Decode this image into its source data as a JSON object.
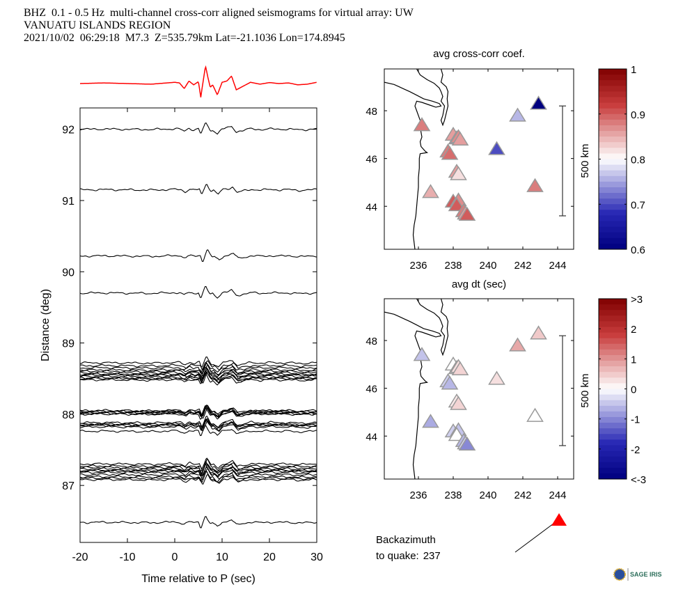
{
  "header": {
    "line1": "BHZ  0.1 - 0.5 Hz  multi-channel cross-corr aligned seismograms for virtual array: UW",
    "line2": "VANUATU ISLANDS REGION",
    "line3": "2021/10/02  06:29:18  M7.3  Z=535.79km Lat=-21.1036 Lon=174.8945"
  },
  "colors": {
    "stack_trace": "#ff0000",
    "trace": "#000000",
    "quake_marker": "#ff0000",
    "colormap_low": "#00007f",
    "colormap_mid": "#ffffff",
    "colormap_high": "#7f0000"
  },
  "chart_data": [
    {
      "type": "line",
      "name": "stacked-beam",
      "title": "",
      "description": "Stacked (beam) seismogram shown in red above the record section",
      "x": [
        -20,
        -15,
        -10,
        -5,
        0,
        1,
        2,
        3,
        4,
        5,
        5.5,
        6,
        6.5,
        7,
        7.5,
        8,
        9,
        10,
        11,
        12,
        13,
        14,
        15,
        16,
        18,
        20,
        22,
        24,
        26,
        28,
        30
      ],
      "y": [
        0,
        0.05,
        0,
        -0.05,
        0.1,
        0.05,
        -0.4,
        0.2,
        -0.1,
        0.15,
        -1.1,
        0.2,
        1.4,
        0.5,
        -0.3,
        -0.1,
        -0.9,
        0.1,
        0.2,
        0.6,
        -0.5,
        -0.3,
        -0.1,
        0.1,
        -0.05,
        0.08,
        0,
        0.05,
        -0.1,
        -0.05,
        0.1
      ]
    },
    {
      "type": "line",
      "name": "record-section",
      "title": "",
      "xlabel": "Time relative to P (sec)",
      "ylabel": "Distance (deg)",
      "xlim": [
        -20,
        30
      ],
      "ylim": [
        86.2,
        92.3
      ],
      "xticks": [
        -20,
        -10,
        0,
        10,
        20,
        30
      ],
      "xtick_labels": [
        "-20",
        "-10",
        "0",
        "10",
        "20",
        "30"
      ],
      "yticks": [
        87,
        88,
        89,
        90,
        91,
        92
      ],
      "ytick_labels": [
        "87",
        "88",
        "89",
        "90",
        "91",
        "92"
      ],
      "trace_offsets_deg": [
        92.0,
        91.15,
        90.22,
        89.7,
        88.72,
        88.68,
        88.65,
        88.62,
        88.6,
        88.58,
        88.56,
        88.55,
        88.53,
        88.51,
        88.5,
        88.48,
        88.05,
        88.04,
        88.03,
        88.02,
        88.01,
        88.0,
        87.88,
        87.86,
        87.85,
        87.84,
        87.82,
        87.76,
        87.3,
        87.27,
        87.25,
        87.23,
        87.21,
        87.2,
        87.18,
        87.15,
        87.12,
        87.1,
        87.08,
        86.48
      ],
      "description": "Cross-correlation aligned vertical-component seismograms plotted at their epicentral distance; main P arrival near 6-7 s"
    },
    {
      "type": "scatter",
      "name": "map-avg-crosscorr",
      "title": "avg cross-corr coef.",
      "xlabel": "avg dt (sec)",
      "ylabel": "",
      "xlim": [
        234.04,
        244.92
      ],
      "ylim": [
        42.2,
        49.75
      ],
      "xticks": [
        236,
        238,
        240,
        242,
        244
      ],
      "xtick_labels": [
        "236",
        "238",
        "240",
        "242",
        "244"
      ],
      "yticks": [
        44,
        46,
        48
      ],
      "ytick_labels": [
        "44",
        "46",
        "48"
      ],
      "scale_bar_label": "500 km",
      "colorbar": {
        "range": [
          0.6,
          1.0
        ],
        "ticks": [
          0.6,
          0.7,
          0.8,
          0.9,
          1.0
        ],
        "tick_labels": [
          "0.6",
          "0.7",
          "0.8",
          "0.9",
          "1"
        ]
      },
      "points": [
        {
          "lon": 236.2,
          "lat": 47.4,
          "value": 0.88
        },
        {
          "lon": 238.0,
          "lat": 47.0,
          "value": 0.86
        },
        {
          "lon": 238.2,
          "lat": 46.85,
          "value": 0.74
        },
        {
          "lon": 238.3,
          "lat": 46.9,
          "value": 0.87
        },
        {
          "lon": 238.4,
          "lat": 46.8,
          "value": 0.86
        },
        {
          "lon": 237.7,
          "lat": 46.3,
          "value": 0.88
        },
        {
          "lon": 237.8,
          "lat": 46.2,
          "value": 0.89
        },
        {
          "lon": 238.2,
          "lat": 45.45,
          "value": 0.86
        },
        {
          "lon": 238.3,
          "lat": 45.35,
          "value": 0.82
        },
        {
          "lon": 236.7,
          "lat": 44.6,
          "value": 0.85
        },
        {
          "lon": 238.0,
          "lat": 44.2,
          "value": 0.9
        },
        {
          "lon": 238.3,
          "lat": 44.25,
          "value": 0.87
        },
        {
          "lon": 238.2,
          "lat": 44.05,
          "value": 0.9
        },
        {
          "lon": 238.6,
          "lat": 43.8,
          "value": 0.88
        },
        {
          "lon": 238.7,
          "lat": 43.7,
          "value": 0.86
        },
        {
          "lon": 238.8,
          "lat": 43.65,
          "value": 0.9
        },
        {
          "lon": 240.5,
          "lat": 46.4,
          "value": 0.7
        },
        {
          "lon": 241.7,
          "lat": 47.8,
          "value": 0.76
        },
        {
          "lon": 242.9,
          "lat": 48.3,
          "value": 0.6
        },
        {
          "lon": 242.7,
          "lat": 44.85,
          "value": 0.88
        }
      ]
    },
    {
      "type": "scatter",
      "name": "map-avg-dt",
      "title": "",
      "xlabel": "",
      "ylabel": "",
      "xlim": [
        234.04,
        244.92
      ],
      "ylim": [
        42.2,
        49.75
      ],
      "xticks": [
        236,
        238,
        240,
        242,
        244
      ],
      "xtick_labels": [
        "236",
        "238",
        "240",
        "242",
        "244"
      ],
      "yticks": [
        44,
        46,
        48
      ],
      "ytick_labels": [
        "44",
        "46",
        "48"
      ],
      "scale_bar_label": "500 km",
      "colorbar": {
        "range": [
          -3,
          3
        ],
        "ticks": [
          -3,
          -2,
          -1,
          0,
          1,
          2,
          3
        ],
        "tick_labels": [
          "<-3",
          "-2",
          "-1",
          "0",
          "1",
          "2",
          ">3"
        ]
      },
      "points": [
        {
          "lon": 236.2,
          "lat": 47.4,
          "value": -0.5
        },
        {
          "lon": 238.0,
          "lat": 47.0,
          "value": 0.0
        },
        {
          "lon": 238.2,
          "lat": 46.85,
          "value": 0.1
        },
        {
          "lon": 238.3,
          "lat": 46.9,
          "value": 0.3
        },
        {
          "lon": 238.4,
          "lat": 46.8,
          "value": 0.4
        },
        {
          "lon": 237.7,
          "lat": 46.3,
          "value": -0.4
        },
        {
          "lon": 237.8,
          "lat": 46.2,
          "value": -0.6
        },
        {
          "lon": 238.2,
          "lat": 45.45,
          "value": 0.2
        },
        {
          "lon": 238.3,
          "lat": 45.35,
          "value": 0.4
        },
        {
          "lon": 236.7,
          "lat": 44.6,
          "value": -0.7
        },
        {
          "lon": 238.0,
          "lat": 44.2,
          "value": -0.4
        },
        {
          "lon": 238.3,
          "lat": 44.25,
          "value": -0.5
        },
        {
          "lon": 238.2,
          "lat": 44.05,
          "value": 0.0
        },
        {
          "lon": 238.6,
          "lat": 43.8,
          "value": -0.6
        },
        {
          "lon": 238.7,
          "lat": 43.7,
          "value": -0.4
        },
        {
          "lon": 238.8,
          "lat": 43.65,
          "value": -1.0
        },
        {
          "lon": 240.5,
          "lat": 46.4,
          "value": 0.3
        },
        {
          "lon": 241.7,
          "lat": 47.8,
          "value": 0.8
        },
        {
          "lon": 242.9,
          "lat": 48.3,
          "value": 0.5
        },
        {
          "lon": 242.7,
          "lat": 44.85,
          "value": 0.0
        }
      ]
    }
  ],
  "backazimuth": {
    "label_line1": "Backazimuth",
    "label_line2": "to quake:",
    "value": "237",
    "degrees": 237
  },
  "logo": {
    "label": "SAGE IRIS"
  }
}
